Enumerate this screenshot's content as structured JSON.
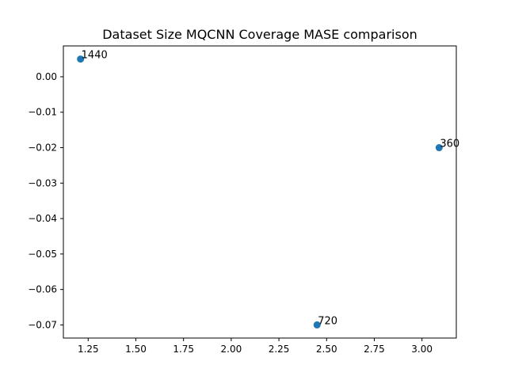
{
  "chart_data": {
    "type": "scatter",
    "title": "Dataset Size MQCNN Coverage MASE comparison",
    "xlabel": "",
    "ylabel": "",
    "xlim": [
      1.12,
      3.18
    ],
    "ylim": [
      -0.0737,
      0.0087
    ],
    "xticks": [
      1.25,
      1.5,
      1.75,
      2.0,
      2.25,
      2.5,
      2.75,
      3.0
    ],
    "xtick_labels": [
      "1.25",
      "1.50",
      "1.75",
      "2.00",
      "2.25",
      "2.50",
      "2.75",
      "3.00"
    ],
    "yticks": [
      0.0,
      -0.01,
      -0.02,
      -0.03,
      -0.04,
      -0.05,
      -0.06,
      -0.07
    ],
    "ytick_labels": [
      "0.00",
      "−0.01",
      "−0.02",
      "−0.03",
      "−0.04",
      "−0.05",
      "−0.06",
      "−0.07"
    ],
    "grid": false,
    "marker_color": "#1f77b4",
    "points": [
      {
        "x": 1.21,
        "y": 0.005,
        "label": "1440"
      },
      {
        "x": 2.45,
        "y": -0.07,
        "label": "720"
      },
      {
        "x": 3.09,
        "y": -0.02,
        "label": "360"
      }
    ]
  }
}
